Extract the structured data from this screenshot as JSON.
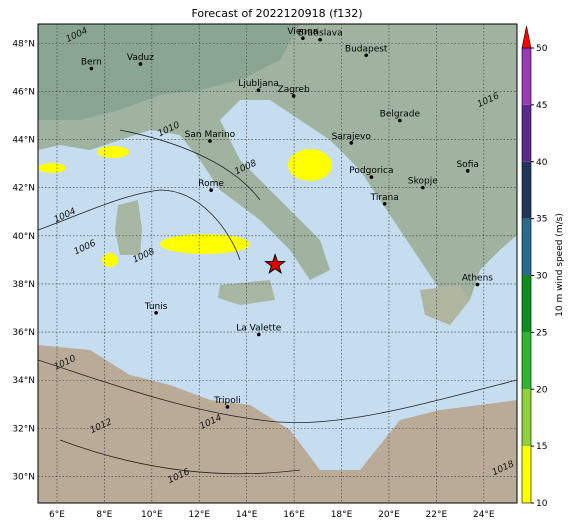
{
  "title": "Forecast of 2022120918 (f132)",
  "map": {
    "xlim": [
      5.2,
      25.4
    ],
    "ylim": [
      28.9,
      48.8
    ],
    "xticks": [
      {
        "value": 6,
        "label": "6°E"
      },
      {
        "value": 8,
        "label": "8°E"
      },
      {
        "value": 10,
        "label": "10°E"
      },
      {
        "value": 12,
        "label": "12°E"
      },
      {
        "value": 14,
        "label": "14°E"
      },
      {
        "value": 16,
        "label": "16°E"
      },
      {
        "value": 18,
        "label": "18°E"
      },
      {
        "value": 20,
        "label": "20°E"
      },
      {
        "value": 22,
        "label": "22°E"
      },
      {
        "value": 24,
        "label": "24°E"
      }
    ],
    "yticks": [
      {
        "value": 30,
        "label": "30°N"
      },
      {
        "value": 32,
        "label": "32°N"
      },
      {
        "value": 34,
        "label": "34°N"
      },
      {
        "value": 36,
        "label": "36°N"
      },
      {
        "value": 38,
        "label": "38°N"
      },
      {
        "value": 40,
        "label": "40°N"
      },
      {
        "value": 42,
        "label": "42°N"
      },
      {
        "value": 44,
        "label": "44°N"
      },
      {
        "value": 46,
        "label": "46°N"
      },
      {
        "value": 48,
        "label": "48°N"
      }
    ],
    "cities": [
      {
        "name": "Vienna",
        "lon": 16.37,
        "lat": 48.21
      },
      {
        "name": "Bratislava",
        "lon": 17.1,
        "lat": 48.15
      },
      {
        "name": "Budapest",
        "lon": 19.04,
        "lat": 47.5
      },
      {
        "name": "Vaduz",
        "lon": 9.52,
        "lat": 47.14
      },
      {
        "name": "Bern",
        "lon": 7.45,
        "lat": 46.95
      },
      {
        "name": "Ljubljana",
        "lon": 14.5,
        "lat": 46.05
      },
      {
        "name": "Zagreb",
        "lon": 15.98,
        "lat": 45.81
      },
      {
        "name": "Belgrade",
        "lon": 20.46,
        "lat": 44.79
      },
      {
        "name": "San Marino",
        "lon": 12.45,
        "lat": 43.94
      },
      {
        "name": "Sarajevo",
        "lon": 18.41,
        "lat": 43.86
      },
      {
        "name": "Sofia",
        "lon": 23.32,
        "lat": 42.7
      },
      {
        "name": "Podgorica",
        "lon": 19.26,
        "lat": 42.44
      },
      {
        "name": "Skopje",
        "lon": 21.43,
        "lat": 42.0
      },
      {
        "name": "Rome",
        "lon": 12.5,
        "lat": 41.9
      },
      {
        "name": "Tirana",
        "lon": 19.82,
        "lat": 41.33
      },
      {
        "name": "Athens",
        "lon": 23.73,
        "lat": 37.98
      },
      {
        "name": "Tunis",
        "lon": 10.18,
        "lat": 36.8
      },
      {
        "name": "La Valette",
        "lon": 14.51,
        "lat": 35.9
      },
      {
        "name": "Tripoli",
        "lon": 13.19,
        "lat": 32.89
      }
    ],
    "isobars": [
      {
        "text": "1004",
        "lon": 6.88,
        "lat": 48.25
      },
      {
        "text": "1010",
        "lon": 10.76,
        "lat": 44.33
      },
      {
        "text": "1008",
        "lon": 14.0,
        "lat": 42.75
      },
      {
        "text": "1004",
        "lon": 6.38,
        "lat": 40.75
      },
      {
        "text": "1006",
        "lon": 7.22,
        "lat": 39.42
      },
      {
        "text": "1008",
        "lon": 9.7,
        "lat": 39.08
      },
      {
        "text": "1010",
        "lon": 6.38,
        "lat": 34.63
      },
      {
        "text": "1012",
        "lon": 7.9,
        "lat": 32.0
      },
      {
        "text": "1014",
        "lon": 12.53,
        "lat": 32.17
      },
      {
        "text": "1016",
        "lon": 11.18,
        "lat": 29.92
      },
      {
        "text": "1016",
        "lon": 24.23,
        "lat": 45.54
      },
      {
        "text": "1018",
        "lon": 24.86,
        "lat": 30.25
      }
    ],
    "marker": {
      "lon": 15.2,
      "lat": 38.8
    }
  },
  "colorbar": {
    "label": "10 m wind speed (m/s)",
    "lim": [
      10,
      50
    ],
    "ticks": [
      10,
      15,
      20,
      25,
      30,
      35,
      40,
      45,
      50
    ],
    "colors": [
      "#ffff00",
      "#8fd13a",
      "#2fb52f",
      "#118c1e",
      "#2a6a8c",
      "#22365c",
      "#5a2a8a",
      "#9a3ab4"
    ],
    "extend_color": "#ff0000"
  }
}
